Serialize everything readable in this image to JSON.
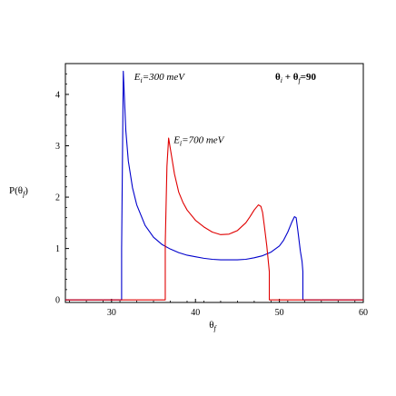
{
  "chart_data": {
    "type": "line",
    "title": "",
    "xlabel": "θ_f",
    "ylabel": "P(θ_f)",
    "xlim": [
      24.5,
      60
    ],
    "ylim": [
      -0.05,
      4.6
    ],
    "xticks": [
      30,
      40,
      50,
      60
    ],
    "yticks": [
      0,
      1,
      2,
      3,
      4
    ],
    "grid": false,
    "series": [
      {
        "label": "E_i=300 meV",
        "color": "#0000cc",
        "x": [
          24.5,
          31.2,
          31.2,
          31.4,
          31.7,
          32.0,
          32.5,
          33.0,
          34.0,
          35.0,
          36.0,
          37.0,
          38.0,
          39.0,
          40.0,
          41.0,
          42.0,
          43.0,
          44.0,
          45.0,
          46.0,
          47.0,
          48.0,
          49.0,
          50.0,
          50.5,
          51.0,
          51.5,
          51.8,
          52.0,
          52.2,
          52.5,
          52.7,
          52.8,
          52.8,
          60.0
        ],
        "y": [
          0.0,
          0.0,
          1.0,
          4.45,
          3.3,
          2.7,
          2.18,
          1.85,
          1.45,
          1.22,
          1.08,
          0.99,
          0.92,
          0.87,
          0.84,
          0.81,
          0.79,
          0.78,
          0.78,
          0.78,
          0.79,
          0.82,
          0.86,
          0.93,
          1.05,
          1.16,
          1.32,
          1.52,
          1.62,
          1.6,
          1.35,
          0.95,
          0.75,
          0.55,
          0.0,
          0.0
        ]
      },
      {
        "label": "E_i=700 meV",
        "color": "#e00000",
        "x": [
          24.5,
          36.4,
          36.4,
          36.6,
          36.8,
          37.0,
          37.5,
          38.0,
          38.5,
          39.0,
          40.0,
          41.0,
          42.0,
          43.0,
          44.0,
          45.0,
          46.0,
          46.5,
          47.0,
          47.5,
          47.8,
          48.0,
          48.2,
          48.5,
          48.8,
          48.8,
          60.0
        ],
        "y": [
          0.0,
          0.0,
          1.1,
          2.6,
          3.15,
          2.95,
          2.45,
          2.1,
          1.9,
          1.75,
          1.55,
          1.42,
          1.32,
          1.27,
          1.28,
          1.35,
          1.5,
          1.62,
          1.75,
          1.85,
          1.82,
          1.7,
          1.45,
          1.05,
          0.55,
          0.0,
          0.0
        ]
      }
    ],
    "annotations": [
      {
        "text_main": "E",
        "text_sub": "i",
        "text_rest": "=300 meV",
        "x": 32.7,
        "y": 4.28
      },
      {
        "text_main": "E",
        "text_sub": "i",
        "text_rest": "=700 meV",
        "x": 37.4,
        "y": 3.05
      },
      {
        "text_main": "θ",
        "text_sub": "i",
        "text_mid": " + θ",
        "text_sub2": "f",
        "text_rest": "=90",
        "x": 49.5,
        "y": 4.28
      }
    ]
  }
}
